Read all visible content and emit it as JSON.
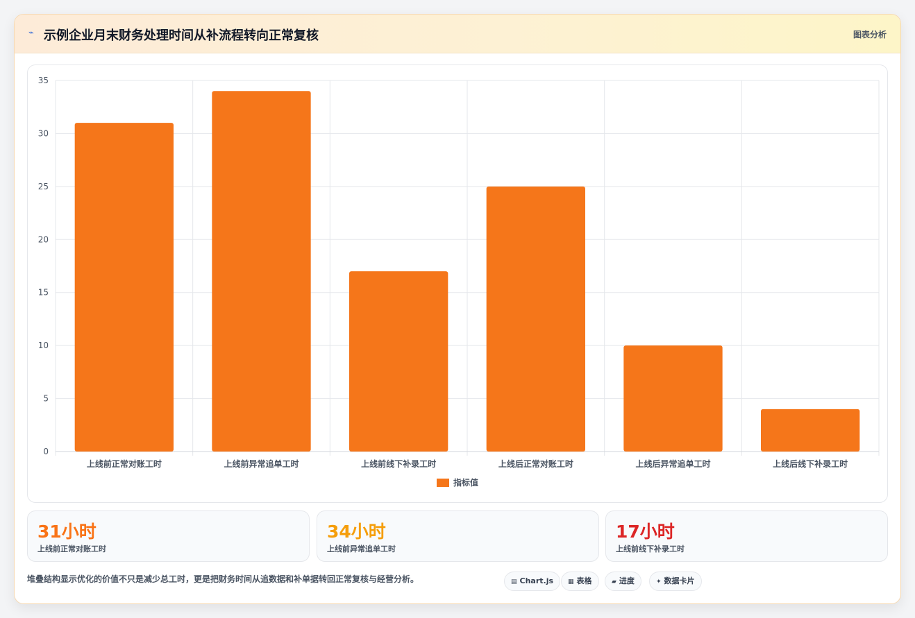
{
  "header": {
    "icon": "chart-spark-icon",
    "title": "示例企业月末财务处理时间从补流程转向正常复核",
    "tag": "图表分析"
  },
  "chart_data": {
    "type": "bar",
    "categories": [
      "上线前正常对账工时",
      "上线前异常追单工时",
      "上线前线下补录工时",
      "上线后正常对账工时",
      "上线后异常追单工时",
      "上线后线下补录工时"
    ],
    "series": [
      {
        "name": "指标值",
        "values": [
          31,
          34,
          17,
          25,
          10,
          4
        ],
        "color": "#f5761a"
      }
    ],
    "ylim": [
      0,
      35
    ],
    "yticks": [
      0,
      5,
      10,
      15,
      20,
      25,
      30,
      35
    ],
    "grid": true,
    "legend": "bottom"
  },
  "stats": [
    {
      "value": "31小时",
      "label": "上线前正常对账工时",
      "color": "#f97316"
    },
    {
      "value": "34小时",
      "label": "上线前异常追单工时",
      "color": "#f59e0b"
    },
    {
      "value": "17小时",
      "label": "上线前线下补录工时",
      "color": "#dc2626"
    }
  ],
  "footer": {
    "note": "堆叠结构显示优化的价值不只是减少总工时，更是把财务时间从追数据和补单据转回正常复核与经营分析。",
    "chips": [
      {
        "icon": "▤",
        "label": "Chart.js"
      },
      {
        "icon": "▦",
        "label": "表格"
      },
      {
        "icon": "▰",
        "label": "进度"
      },
      {
        "icon": "✦",
        "label": "数据卡片"
      }
    ]
  }
}
